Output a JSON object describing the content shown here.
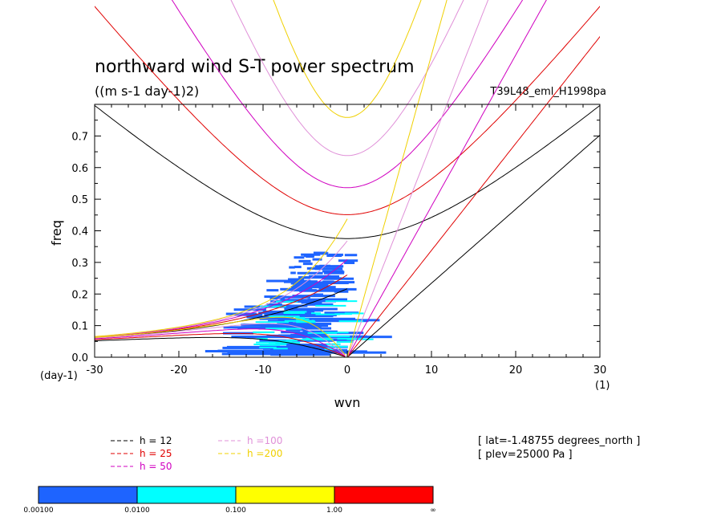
{
  "chart_data": {
    "type": "line",
    "title": "northward wind S-T power spectrum",
    "subtitle": "((m s-1 day-1)2)",
    "run_label": "T39L48_eml_H1998pa",
    "xlabel": "wvn",
    "ylabel": "freq",
    "x_unit": "(1)",
    "y_unit": "(day-1)",
    "xlim": [
      -30,
      30
    ],
    "ylim": [
      0,
      0.8
    ],
    "x_ticks": [
      "-30",
      "-20",
      "-10",
      "0",
      "10",
      "20",
      "30"
    ],
    "y_ticks": [
      "0.0",
      "0.1",
      "0.2",
      "0.3",
      "0.4",
      "0.5",
      "0.6",
      "0.7"
    ],
    "dispersion_curves": [
      {
        "name": "h = 12",
        "h": 12,
        "color": "#000000"
      },
      {
        "name": "h = 25",
        "h": 25,
        "color": "#e00000"
      },
      {
        "name": "h = 50",
        "h": 50,
        "color": "#d000c0"
      },
      {
        "name": "h =100",
        "h": 100,
        "color": "#e090d8"
      },
      {
        "name": "h =200",
        "h": 200,
        "color": "#f0d000"
      }
    ],
    "annotations": [
      "[ lat=-1.48755 degrees_north ]",
      "[ plev=25000 Pa ]"
    ],
    "colorbar": {
      "levels": [
        "0.00100",
        "0.0100",
        "0.100",
        "1.00",
        "∞"
      ],
      "colors": [
        "#1e64ff",
        "#00ffff",
        "#ffff00",
        "#ff0000"
      ]
    }
  }
}
